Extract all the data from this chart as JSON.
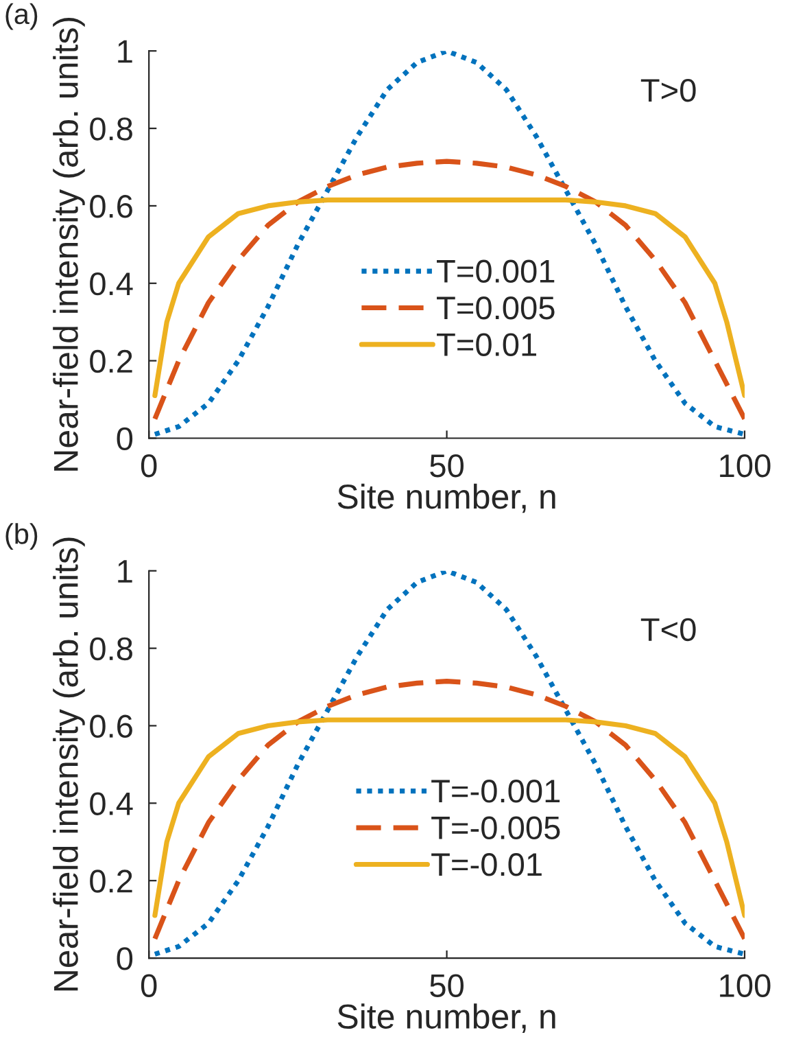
{
  "chart_data": [
    {
      "type": "line",
      "xlabel": "Site number, n",
      "ylabel": "Near-field intensity (arb. units)",
      "annotations": [
        "(a)",
        "T>0"
      ],
      "xlim": [
        0,
        100
      ],
      "ylim": [
        0,
        1
      ],
      "xticks": [
        0,
        50,
        100
      ],
      "yticks": [
        0,
        0.2,
        0.4,
        0.6,
        0.8,
        1
      ],
      "legend": "bottom",
      "grid": false,
      "series": [
        {
          "name": "T=0.001",
          "color": "#0072bd",
          "line_style": "dotted",
          "x": [
            1,
            5,
            10,
            15,
            20,
            25,
            30,
            35,
            40,
            45,
            50,
            55,
            60,
            65,
            70,
            75,
            80,
            85,
            90,
            95,
            100
          ],
          "values": [
            0.01,
            0.03,
            0.09,
            0.2,
            0.34,
            0.5,
            0.64,
            0.78,
            0.9,
            0.97,
            1.0,
            0.97,
            0.9,
            0.78,
            0.64,
            0.5,
            0.34,
            0.2,
            0.09,
            0.03,
            0.01
          ]
        },
        {
          "name": "T=0.005",
          "color": "#d95319",
          "line_style": "dashed",
          "x": [
            1,
            5,
            10,
            15,
            20,
            25,
            30,
            35,
            40,
            45,
            50,
            55,
            60,
            65,
            70,
            75,
            80,
            85,
            90,
            95,
            100
          ],
          "values": [
            0.05,
            0.2,
            0.35,
            0.46,
            0.55,
            0.61,
            0.65,
            0.68,
            0.7,
            0.71,
            0.715,
            0.71,
            0.7,
            0.68,
            0.65,
            0.61,
            0.55,
            0.46,
            0.35,
            0.2,
            0.05
          ]
        },
        {
          "name": "T=0.01",
          "color": "#edb120",
          "line_style": "solid",
          "x": [
            1,
            3,
            5,
            10,
            15,
            20,
            25,
            30,
            50,
            70,
            75,
            80,
            85,
            90,
            95,
            97,
            100
          ],
          "values": [
            0.11,
            0.3,
            0.4,
            0.52,
            0.58,
            0.6,
            0.61,
            0.615,
            0.615,
            0.615,
            0.61,
            0.6,
            0.58,
            0.52,
            0.4,
            0.3,
            0.11
          ]
        }
      ]
    },
    {
      "type": "line",
      "xlabel": "Site number, n",
      "ylabel": "Near-field intensity (arb. units)",
      "annotations": [
        "(b)",
        "T<0"
      ],
      "xlim": [
        0,
        100
      ],
      "ylim": [
        0,
        1
      ],
      "xticks": [
        0,
        50,
        100
      ],
      "yticks": [
        0,
        0.2,
        0.4,
        0.6,
        0.8,
        1
      ],
      "legend": "bottom",
      "grid": false,
      "series": [
        {
          "name": "T=-0.001",
          "color": "#0072bd",
          "line_style": "dotted",
          "x": [
            1,
            5,
            10,
            15,
            20,
            25,
            30,
            35,
            40,
            45,
            50,
            55,
            60,
            65,
            70,
            75,
            80,
            85,
            90,
            95,
            100
          ],
          "values": [
            0.01,
            0.03,
            0.09,
            0.2,
            0.34,
            0.5,
            0.64,
            0.78,
            0.9,
            0.97,
            1.0,
            0.97,
            0.9,
            0.78,
            0.64,
            0.5,
            0.34,
            0.2,
            0.09,
            0.03,
            0.01
          ]
        },
        {
          "name": "T=-0.005",
          "color": "#d95319",
          "line_style": "dashed",
          "x": [
            1,
            5,
            10,
            15,
            20,
            25,
            30,
            35,
            40,
            45,
            50,
            55,
            60,
            65,
            70,
            75,
            80,
            85,
            90,
            95,
            100
          ],
          "values": [
            0.05,
            0.2,
            0.35,
            0.46,
            0.55,
            0.61,
            0.65,
            0.68,
            0.7,
            0.71,
            0.715,
            0.71,
            0.7,
            0.68,
            0.65,
            0.61,
            0.55,
            0.46,
            0.35,
            0.2,
            0.05
          ]
        },
        {
          "name": "T=-0.01",
          "color": "#edb120",
          "line_style": "solid",
          "x": [
            1,
            3,
            5,
            10,
            15,
            20,
            25,
            30,
            50,
            70,
            75,
            80,
            85,
            90,
            95,
            97,
            100
          ],
          "values": [
            0.11,
            0.3,
            0.4,
            0.52,
            0.58,
            0.6,
            0.61,
            0.615,
            0.615,
            0.615,
            0.61,
            0.6,
            0.58,
            0.52,
            0.4,
            0.3,
            0.11
          ]
        }
      ]
    }
  ]
}
